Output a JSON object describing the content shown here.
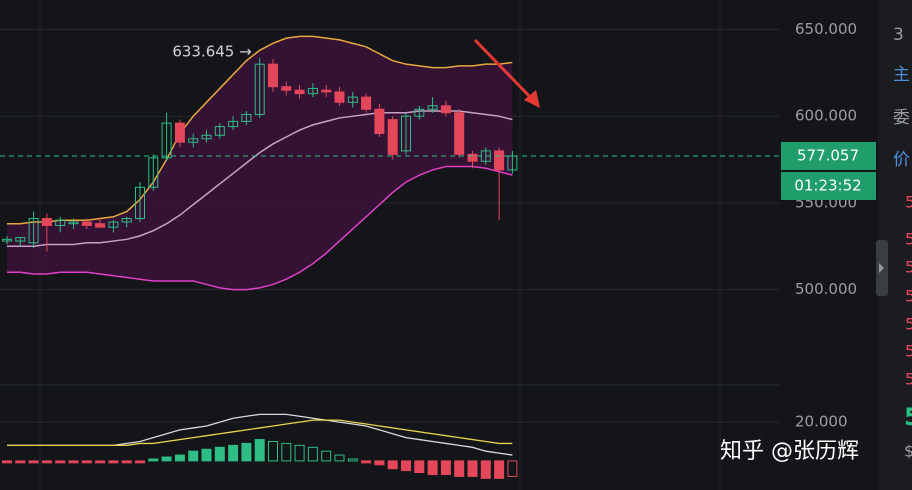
{
  "chart_data": [
    {
      "type": "candlestick",
      "open": [
        528,
        528,
        527,
        541,
        537,
        538,
        539,
        538,
        536,
        539,
        541,
        559,
        576,
        596,
        585,
        587,
        589,
        594,
        597,
        601,
        630,
        617,
        615,
        613,
        615,
        614,
        608,
        611,
        604,
        598,
        580,
        600,
        604,
        606,
        602,
        578,
        574,
        580,
        569
      ],
      "high": [
        531,
        530,
        545,
        544,
        542,
        541,
        541,
        541,
        540,
        542,
        562,
        578,
        602,
        598,
        590,
        592,
        596,
        600,
        603,
        633.645,
        633,
        620,
        618,
        619,
        618,
        617,
        614,
        613,
        607,
        600,
        602,
        606,
        611,
        609,
        604,
        580,
        582,
        582,
        580
      ],
      "low": [
        526,
        525,
        524,
        522,
        533,
        535,
        535,
        536,
        533,
        536,
        539,
        557,
        574,
        582,
        582,
        585,
        587,
        592,
        595,
        599,
        614,
        612,
        610,
        611,
        611,
        606,
        605,
        602,
        588,
        575,
        578,
        598,
        602,
        600,
        576,
        570,
        572,
        540,
        567
      ],
      "close": [
        529,
        530,
        541,
        537,
        540,
        539,
        537,
        536,
        539,
        541,
        559,
        576,
        596,
        585,
        587,
        589,
        594,
        597,
        601,
        630,
        617,
        615,
        613,
        616,
        614,
        608,
        611,
        604,
        590,
        578,
        600,
        604,
        606,
        602,
        578,
        574,
        580,
        569,
        577.057
      ],
      "up_color": "#2ebd85",
      "down_color": "#e5475a",
      "bands": {
        "upper": {
          "color": "#e8a83e",
          "values": [
            538,
            538,
            539,
            539,
            540,
            540,
            540,
            541,
            542,
            545,
            552,
            562,
            575,
            590,
            600,
            608,
            616,
            624,
            632,
            638,
            642,
            645,
            646,
            646,
            645,
            644,
            642,
            640,
            636,
            632,
            630,
            629,
            628,
            628,
            629,
            629,
            630,
            630,
            631
          ]
        },
        "middle": {
          "color": "#c7a2c4",
          "values": [
            525,
            525,
            525,
            526,
            526,
            526,
            527,
            527,
            528,
            529,
            531,
            534,
            538,
            543,
            549,
            555,
            561,
            567,
            573,
            579,
            584,
            588,
            592,
            595,
            597,
            599,
            600,
            601,
            602,
            602,
            602,
            603,
            603,
            603,
            603,
            602,
            601,
            600,
            598
          ]
        },
        "lower": {
          "color": "#e040c8",
          "values": [
            510,
            510,
            509,
            509,
            510,
            510,
            510,
            509,
            508,
            507,
            506,
            505,
            505,
            505,
            505,
            503,
            501,
            500,
            500,
            501,
            503,
            506,
            510,
            515,
            521,
            528,
            535,
            542,
            549,
            556,
            562,
            566,
            569,
            571,
            571,
            571,
            570,
            568,
            566
          ]
        },
        "fill": "#3b1239"
      },
      "ylim": [
        445,
        667
      ],
      "yticks": [
        {
          "value": 650,
          "label": "650.000"
        },
        {
          "value": 600,
          "label": "600.000"
        },
        {
          "value": 550,
          "label": "550.000"
        },
        {
          "value": 500,
          "label": "500.000"
        }
      ],
      "grid": true,
      "annotation": "633.645 →",
      "countdown": "01:23:52"
    },
    {
      "type": "macd",
      "histogram": [
        -1,
        -1,
        -1,
        -1,
        -1,
        -1,
        -1,
        -1,
        -1,
        -1,
        -1,
        1,
        2,
        3,
        5,
        6,
        7,
        8,
        9,
        11,
        10,
        9,
        8,
        7,
        5,
        3,
        1,
        -1,
        -2,
        -4,
        -5,
        -6,
        -7,
        -7,
        -8,
        -8,
        -9,
        -9,
        -8
      ],
      "dif": {
        "color": "#d9d9d9",
        "values": [
          8,
          8,
          8,
          8,
          8,
          8,
          8,
          8,
          8,
          9,
          10,
          12,
          14,
          16,
          17,
          18,
          20,
          22,
          23,
          24,
          24,
          24,
          23,
          22,
          21,
          20,
          19,
          18,
          16,
          14,
          12,
          11,
          10,
          9,
          8,
          7,
          5,
          4,
          3
        ]
      },
      "dea": {
        "color": "#e8d44a",
        "values": [
          8,
          8,
          8,
          8,
          8,
          8,
          8,
          8,
          8,
          8,
          9,
          9,
          10,
          11,
          12,
          13,
          14,
          15,
          16,
          17,
          18,
          19,
          20,
          21,
          21,
          21,
          20,
          19,
          18,
          17,
          16,
          15,
          14,
          13,
          12,
          11,
          10,
          9,
          9
        ]
      },
      "ylim": [
        -15,
        35
      ],
      "yticks": [
        {
          "value": 20,
          "label": "20.000"
        }
      ]
    }
  ],
  "side_panel": {
    "tabs": [
      "3",
      "主",
      "委",
      "价"
    ],
    "digits": [
      "5",
      "5",
      "5",
      "5",
      "5",
      "5",
      "5"
    ],
    "big": "5",
    "currency": "$"
  },
  "watermark": "知乎 @张历辉"
}
